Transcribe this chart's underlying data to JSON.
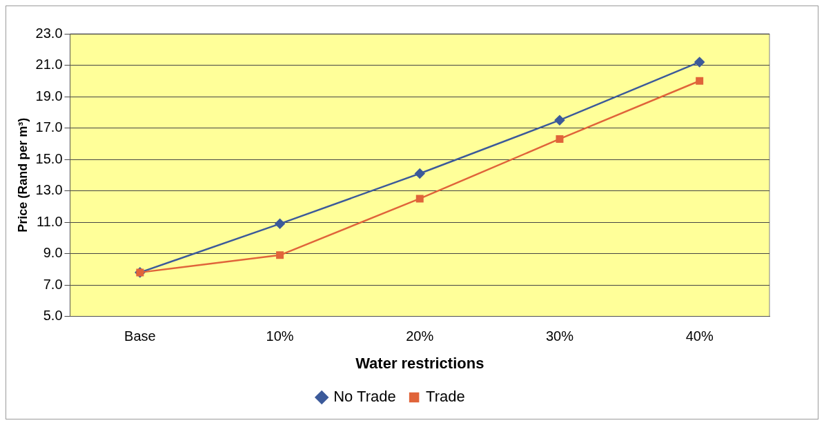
{
  "chart_data": {
    "type": "line",
    "xlabel": "Water restrictions",
    "ylabel": "Price (Rand per m³)",
    "categories": [
      "Base",
      "10%",
      "20%",
      "30%",
      "40%"
    ],
    "series": [
      {
        "name": "No Trade",
        "color": "#3c5a9a",
        "marker": "diamond",
        "values": [
          7.8,
          10.9,
          14.1,
          17.5,
          21.2
        ]
      },
      {
        "name": "Trade",
        "color": "#e0643a",
        "marker": "square",
        "values": [
          7.8,
          8.9,
          12.5,
          16.3,
          20.0
        ]
      }
    ],
    "ylim": [
      5,
      23
    ],
    "yticks": [
      {
        "value": 5,
        "label": "5.0"
      },
      {
        "value": 7,
        "label": "7.0"
      },
      {
        "value": 9,
        "label": "9.0"
      },
      {
        "value": 11,
        "label": "11.0"
      },
      {
        "value": 13,
        "label": "13.0"
      },
      {
        "value": 15,
        "label": "15.0"
      },
      {
        "value": 17,
        "label": "17.0"
      },
      {
        "value": 19,
        "label": "19.0"
      },
      {
        "value": 21,
        "label": "21.0"
      },
      {
        "value": 23,
        "label": "23.0"
      }
    ],
    "grid": "y",
    "legend": "bottom",
    "line_style": "solid"
  }
}
